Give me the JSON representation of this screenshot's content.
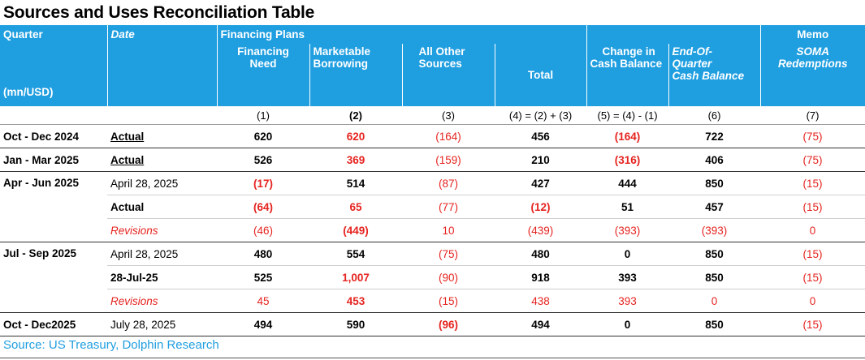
{
  "title": "Sources and Uses Reconciliation Table",
  "header": {
    "quarter": "Quarter",
    "date": "Date",
    "unit": "(mn/USD)",
    "financing_plans": "Financing Plans",
    "memo": "Memo",
    "cols": [
      {
        "line1": "Financing",
        "line2": "Need",
        "line3": ""
      },
      {
        "line1": "Marketable",
        "line2": "Borrowing",
        "line3": ""
      },
      {
        "line1": "All Other",
        "line2": "Sources",
        "line3": ""
      },
      {
        "line1": "",
        "line2": "Total",
        "line3": ""
      },
      {
        "line1": "Change in",
        "line2": "Cash Balance",
        "line3": ""
      },
      {
        "line1": "End-Of-",
        "line2": "Quarter",
        "line3": "Cash Balance"
      },
      {
        "line1": "SOMA",
        "line2": "Redemptions",
        "line3": ""
      }
    ],
    "numbers": [
      "(1)",
      "(2)",
      "(3)",
      "(4) = (2) + (3)",
      "(5) = (4) - (1)",
      "(6)",
      "(7)"
    ]
  },
  "rows": [
    {
      "quarter": "Oct - Dec 2024",
      "date": "Actual",
      "values": [
        "620",
        "620",
        "(164)",
        "456",
        "(164)",
        "722",
        "(75)"
      ]
    },
    {
      "quarter": "Jan - Mar 2025",
      "date": "Actual",
      "values": [
        "526",
        "369",
        "(159)",
        "210",
        "(316)",
        "406",
        "(75)"
      ]
    },
    {
      "quarter": "Apr - Jun 2025",
      "date": "April 28, 2025",
      "values": [
        "(17)",
        "514",
        "(87)",
        "427",
        "444",
        "850",
        "(15)"
      ]
    },
    {
      "quarter": "",
      "date": "Actual",
      "values": [
        "(64)",
        "65",
        "(77)",
        "(12)",
        "51",
        "457",
        "(15)"
      ]
    },
    {
      "quarter": "",
      "date": "Revisions",
      "values": [
        "(46)",
        "(449)",
        "10",
        "(439)",
        "(393)",
        "(393)",
        "0"
      ]
    },
    {
      "quarter": "Jul - Sep 2025",
      "date": "April 28, 2025",
      "values": [
        "480",
        "554",
        "(75)",
        "480",
        "0",
        "850",
        "(15)"
      ]
    },
    {
      "quarter": "",
      "date": "28-Jul-25",
      "values": [
        "525",
        "1,007",
        "(90)",
        "918",
        "393",
        "850",
        "(15)"
      ]
    },
    {
      "quarter": "",
      "date": "Revisions",
      "values": [
        "45",
        "453",
        "(15)",
        "438",
        "393",
        "0",
        "0"
      ]
    },
    {
      "quarter": "Oct - Dec2025",
      "date": "July 28, 2025",
      "values": [
        "494",
        "590",
        "(96)",
        "494",
        "0",
        "850",
        "(15)"
      ]
    }
  ],
  "source": "Source: US Treasury, Dolphin Research",
  "colors": {
    "header_bg": "#1f9ee0",
    "negative": "#e5231f",
    "source_text": "#1f9ee0"
  }
}
